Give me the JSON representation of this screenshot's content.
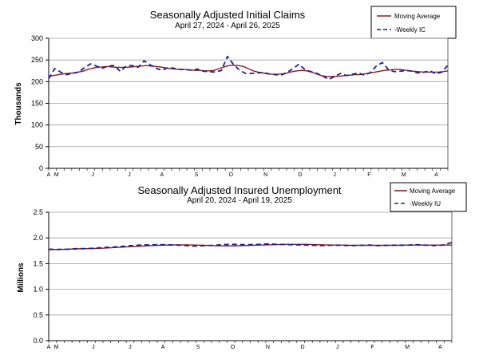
{
  "colors": {
    "moving_average": "#8b1a1a",
    "weekly": "#1f1f8c",
    "grid": "#a0a0a0",
    "axis": "#000000"
  },
  "chart_data": [
    {
      "type": "line",
      "title": "Seasonally Adjusted Initial Claims",
      "subtitle": "April 27, 2024 - April 26, 2025",
      "ylabel": "Thousands",
      "xlabel": "",
      "ylim": [
        0,
        300
      ],
      "yticks": [
        "0",
        "50",
        "100",
        "150",
        "200",
        "250",
        "300"
      ],
      "ytick_values": [
        0,
        50,
        100,
        150,
        200,
        250,
        300
      ],
      "xticks": [
        "A",
        "M",
        "J",
        "J",
        "A",
        "S",
        "O",
        "N",
        "D",
        "J",
        "F",
        "M",
        "A"
      ],
      "xtick_weeks": [
        0,
        2,
        11.5,
        21,
        29.5,
        38.5,
        47.5,
        56.5,
        65.5,
        74.5,
        83.5,
        92.5,
        101
      ],
      "grid": true,
      "legend": {
        "position": "top-right",
        "entries": [
          "Moving Average",
          "-Weekly IC"
        ]
      },
      "series": [
        {
          "name": "Moving Average",
          "style": "solid",
          "values": [
            212,
            214,
            216,
            218,
            219,
            220,
            222,
            224,
            228,
            231,
            233,
            234,
            235,
            234,
            233,
            233,
            233,
            234,
            235,
            236,
            237,
            236,
            235,
            234,
            232,
            230,
            229,
            228,
            228,
            227,
            226,
            226,
            225,
            225,
            226,
            230,
            234,
            237,
            238,
            237,
            235,
            230,
            225,
            222,
            220,
            218,
            217,
            217,
            218,
            220,
            223,
            225,
            226,
            225,
            222,
            218,
            214,
            212,
            212,
            212,
            213,
            214,
            215,
            216,
            216,
            218,
            220,
            222,
            224,
            226,
            227,
            228,
            228,
            227,
            225,
            224,
            223,
            222,
            222,
            222,
            222,
            223,
            225
          ]
        },
        {
          "name": "-Weekly IC",
          "style": "dashed",
          "values": [
            207,
            230,
            222,
            216,
            219,
            222,
            232,
            241,
            236,
            231,
            236,
            237,
            224,
            236,
            237,
            233,
            248,
            239,
            231,
            226,
            232,
            231,
            228,
            228,
            226,
            229,
            224,
            223,
            222,
            226,
            258,
            240,
            227,
            219,
            219,
            220,
            221,
            218,
            216,
            215,
            221,
            230,
            240,
            228,
            223,
            219,
            213,
            205,
            212,
            219,
            214,
            217,
            220,
            215,
            221,
            236,
            244,
            228,
            223,
            224,
            226,
            224,
            220,
            222,
            225,
            218,
            222,
            238
          ]
        }
      ]
    },
    {
      "type": "line",
      "title": "Seasonally Adjusted Insured Unemployment",
      "subtitle": "April 20, 2024 - April 19, 2025",
      "ylabel": "Millions",
      "xlabel": "",
      "ylim": [
        0,
        2.5
      ],
      "yticks": [
        "0.0",
        "0.5",
        "1.0",
        "1.5",
        "2.0",
        "2.5"
      ],
      "ytick_values": [
        0,
        0.5,
        1.0,
        1.5,
        2.0,
        2.5
      ],
      "xticks": [
        "A",
        "M",
        "J",
        "J",
        "A",
        "S",
        "O",
        "N",
        "D",
        "J",
        "F",
        "M",
        "A"
      ],
      "xtick_weeks": [
        0,
        2,
        11.5,
        21,
        29.5,
        38.5,
        47.5,
        56.5,
        65.5,
        74.5,
        83.5,
        92.5,
        101
      ],
      "grid": true,
      "legend": {
        "position": "top-right",
        "entries": [
          "Moving Average",
          "-Weekly IU"
        ]
      },
      "series": [
        {
          "name": "Moving Average",
          "style": "solid",
          "values": [
            1.77,
            1.775,
            1.78,
            1.785,
            1.79,
            1.795,
            1.8,
            1.81,
            1.82,
            1.83,
            1.84,
            1.85,
            1.855,
            1.86,
            1.865,
            1.865,
            1.86,
            1.855,
            1.85,
            1.845,
            1.845,
            1.85,
            1.855,
            1.86,
            1.865,
            1.87,
            1.875,
            1.875,
            1.875,
            1.87,
            1.865,
            1.86,
            1.86,
            1.855,
            1.855,
            1.855,
            1.855,
            1.855,
            1.855,
            1.86,
            1.86,
            1.86,
            1.86,
            1.86,
            1.86
          ]
        },
        {
          "name": "-Weekly IU",
          "style": "dashed",
          "values": [
            1.78,
            1.775,
            1.78,
            1.79,
            1.79,
            1.8,
            1.815,
            1.82,
            1.835,
            1.85,
            1.86,
            1.865,
            1.87,
            1.865,
            1.86,
            1.85,
            1.84,
            1.85,
            1.855,
            1.87,
            1.875,
            1.87,
            1.87,
            1.875,
            1.885,
            1.875,
            1.87,
            1.865,
            1.86,
            1.855,
            1.85,
            1.86,
            1.855,
            1.85,
            1.855,
            1.86,
            1.85,
            1.855,
            1.86,
            1.855,
            1.87,
            1.86,
            1.85,
            1.86,
            1.91
          ]
        }
      ]
    }
  ]
}
